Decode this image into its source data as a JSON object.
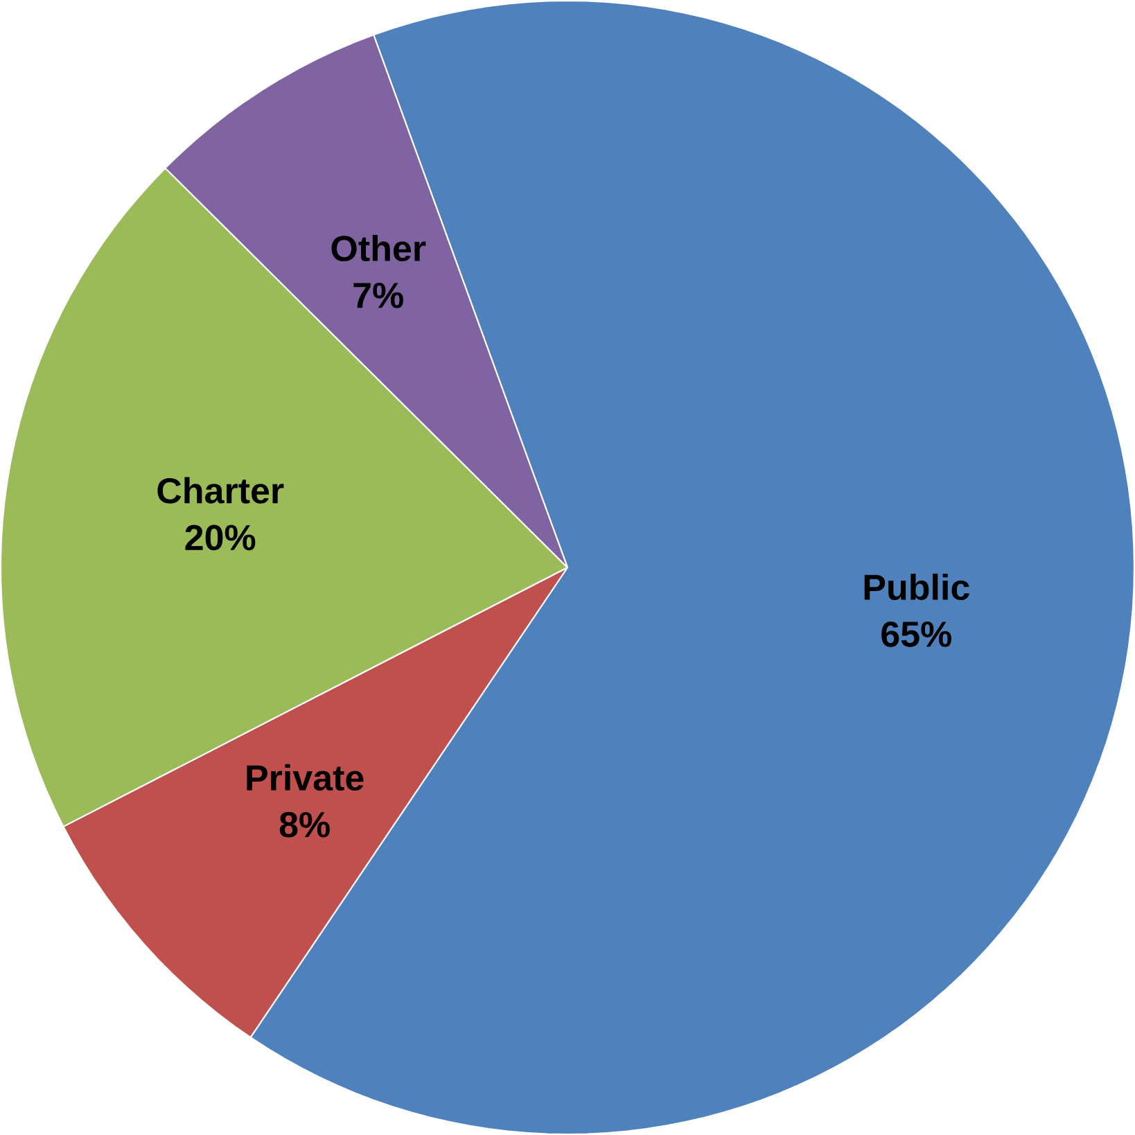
{
  "chart_data": {
    "type": "pie",
    "categories": [
      "Public",
      "Private",
      "Charter",
      "Other"
    ],
    "values": [
      65,
      8,
      20,
      7
    ],
    "value_labels": [
      "65%",
      "8%",
      "20%",
      "7%"
    ],
    "colors": [
      "#4f81bd",
      "#c0504d",
      "#9bbb59",
      "#8064a2"
    ]
  }
}
